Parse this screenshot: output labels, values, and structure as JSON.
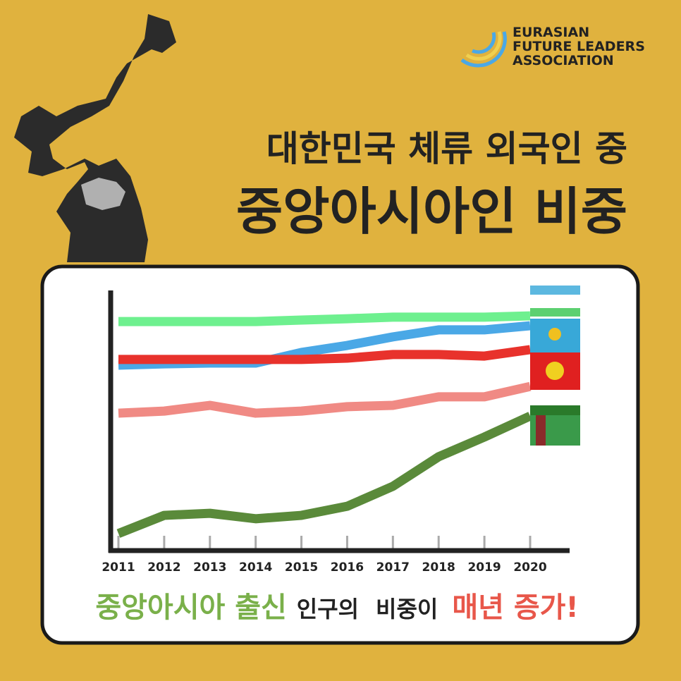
{
  "logo": [
    "EURASIAN",
    "FUTURE LEADERS",
    "ASSOCIATION"
  ],
  "headline": [
    "대한민국 체류 외국인 중",
    "중앙아시아인 비중"
  ],
  "chart_data": {
    "type": "line",
    "categories": [
      "2011",
      "2012",
      "2013",
      "2014",
      "2015",
      "2016",
      "2017",
      "2018",
      "2019",
      "2020"
    ],
    "series": [
      {
        "color": "#6ef08f",
        "values": [
          88,
          88,
          88,
          88,
          88.6,
          89.1,
          89.7,
          89.7,
          89.7,
          90.2
        ]
      },
      {
        "color": "#4aa8e6",
        "values": [
          71.2,
          71.7,
          72,
          72,
          76.1,
          78.8,
          82.1,
          84.8,
          84.8,
          86.4
        ]
      },
      {
        "color": "#e8322c",
        "values": [
          73.4,
          73.4,
          73.4,
          73.4,
          73.4,
          73.9,
          75.3,
          75.3,
          74.7,
          77.2
        ]
      },
      {
        "color": "#f08a84",
        "values": [
          52.7,
          53.5,
          55.7,
          52.7,
          53.5,
          55.2,
          55.7,
          59,
          59,
          63
        ]
      },
      {
        "color": "#5a8a3a",
        "values": [
          6.3,
          13.3,
          14.1,
          12,
          13.3,
          16.8,
          24.5,
          35.9,
          43.5,
          51.6
        ]
      }
    ],
    "ylim": [
      0,
      100
    ]
  },
  "caption": [
    "중앙아시아 출신",
    "인구의",
    "비중이",
    "매년 증가!"
  ]
}
